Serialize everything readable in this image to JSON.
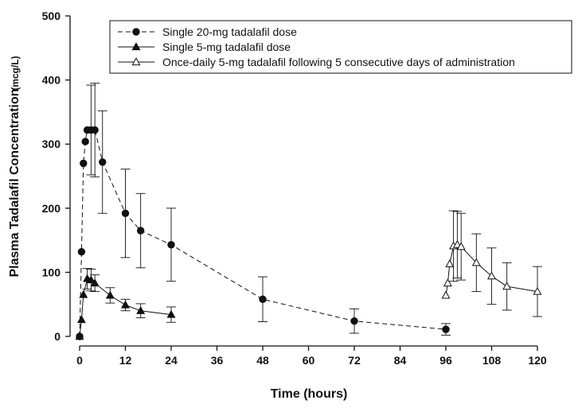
{
  "chart_data": {
    "type": "line",
    "xlabel": "Time (hours)",
    "ylabel": "Plasma Tadalafil Concentration",
    "ylabel_unit": "(mcg/L)",
    "xlim": [
      0,
      120
    ],
    "ylim": [
      0,
      500
    ],
    "x_ticks": [
      0,
      12,
      24,
      36,
      48,
      60,
      72,
      84,
      96,
      108,
      120
    ],
    "y_ticks": [
      0,
      100,
      200,
      300,
      400,
      500
    ],
    "grid": false,
    "legend_position": "top-right",
    "series": [
      {
        "name": "Single 20-mg tadalafil dose",
        "marker": "filled-circle",
        "line": "dashed",
        "color": "#111111",
        "x": [
          0,
          0.5,
          1,
          1.5,
          2,
          3,
          4,
          6,
          12,
          16,
          24,
          48,
          72,
          96
        ],
        "y": [
          0,
          132,
          270,
          304,
          322,
          322,
          322,
          272,
          192,
          165,
          143,
          58,
          24,
          11
        ],
        "err": [
          0,
          0,
          0,
          0,
          0,
          70,
          73,
          80,
          69,
          58,
          57,
          35,
          19,
          9
        ]
      },
      {
        "name": "Single 5-mg tadalafil dose",
        "marker": "filled-triangle",
        "line": "solid",
        "color": "#111111",
        "x": [
          0,
          0.5,
          1,
          2,
          3,
          4,
          8,
          12,
          16,
          24
        ],
        "y": [
          0,
          26,
          65,
          90,
          88,
          83,
          64,
          49,
          40,
          34
        ],
        "err": [
          0,
          0,
          0,
          16,
          17,
          13,
          12,
          9,
          11,
          12
        ]
      },
      {
        "name": "Once-daily 5-mg tadalafil following 5 consecutive days of administration",
        "marker": "open-triangle",
        "line": "solid",
        "color": "#111111",
        "x": [
          96,
          96.5,
          97,
          98,
          99,
          100,
          104,
          108,
          112,
          120
        ],
        "y": [
          64,
          83,
          113,
          141,
          143,
          140,
          115,
          94,
          78,
          70
        ],
        "err": [
          0,
          0,
          0,
          55,
          52,
          52,
          45,
          44,
          37,
          39
        ]
      }
    ]
  }
}
